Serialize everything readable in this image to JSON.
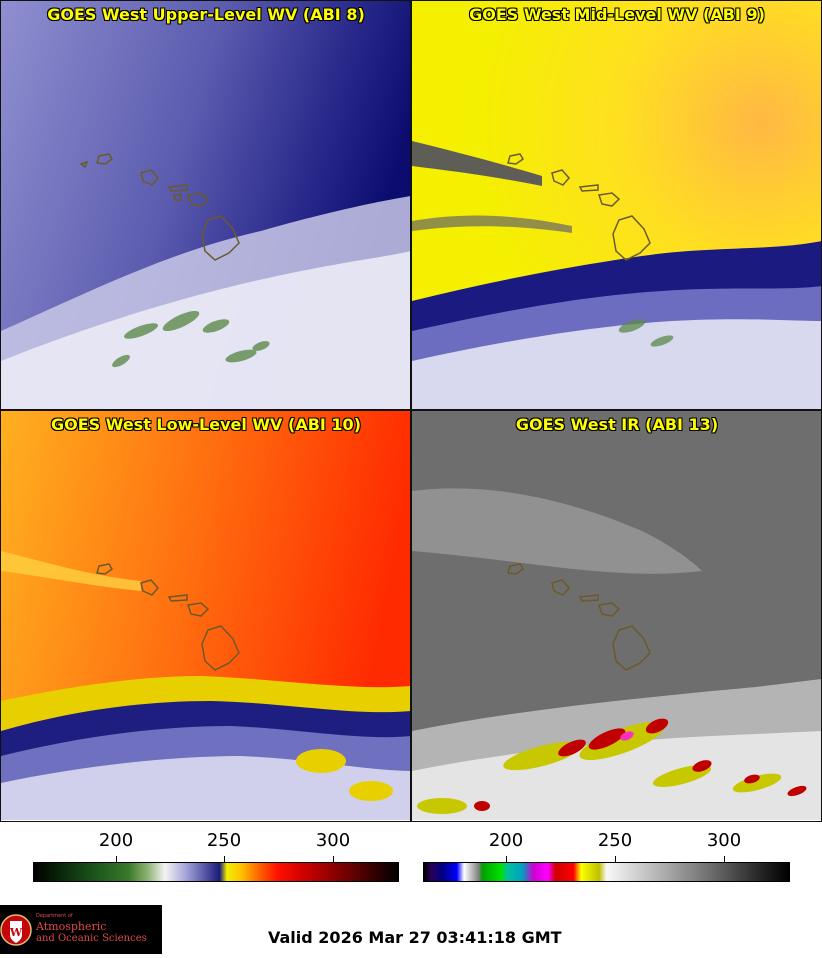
{
  "panels": [
    {
      "title": "GOES West Upper-Level WV (ABI 8)"
    },
    {
      "title": "GOES West Mid-Level WV (ABI 9)"
    },
    {
      "title": "GOES West Low-Level WV (ABI 10)"
    },
    {
      "title": "GOES West IR (ABI 13)"
    }
  ],
  "colorbars": [
    {
      "ticks": [
        "200",
        "250",
        "300"
      ]
    },
    {
      "ticks": [
        "200",
        "250",
        "300"
      ]
    }
  ],
  "logo": {
    "line1": "Department of",
    "line2": "Atmospheric",
    "line3": "and Oceanic Sciences"
  },
  "valid_time": "Valid 2026 Mar 27 03:41:18 GMT"
}
